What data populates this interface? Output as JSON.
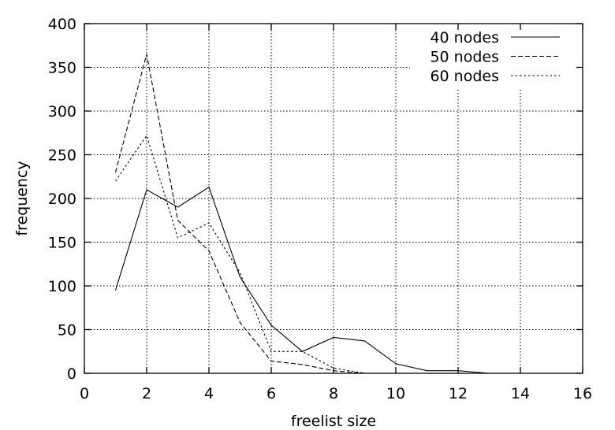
{
  "chart_data": {
    "type": "line",
    "title": "",
    "xlabel": "freelist size",
    "ylabel": "frequency",
    "xlim": [
      0,
      16
    ],
    "ylim": [
      0,
      400
    ],
    "xticks": [
      0,
      2,
      4,
      6,
      8,
      10,
      12,
      14,
      16
    ],
    "yticks": [
      0,
      50,
      100,
      150,
      200,
      250,
      300,
      350,
      400
    ],
    "grid": true,
    "legend_position": "top-right",
    "series": [
      {
        "name": "40 nodes",
        "line_style": "solid",
        "x": [
          1,
          2,
          3,
          4,
          5,
          6,
          7,
          8,
          9,
          10,
          11,
          12,
          13
        ],
        "y": [
          95,
          210,
          190,
          213,
          110,
          55,
          25,
          41,
          37,
          11,
          3,
          3,
          0
        ]
      },
      {
        "name": "50 nodes",
        "line_style": "dashed",
        "x": [
          1,
          2,
          3,
          4,
          5,
          6,
          7,
          8,
          9
        ],
        "y": [
          230,
          365,
          175,
          140,
          58,
          14,
          10,
          3,
          0
        ]
      },
      {
        "name": "60 nodes",
        "line_style": "dotted",
        "x": [
          1,
          2,
          3,
          4,
          5,
          6,
          7,
          8,
          9
        ],
        "y": [
          220,
          272,
          155,
          172,
          115,
          25,
          25,
          6,
          0
        ]
      }
    ]
  }
}
